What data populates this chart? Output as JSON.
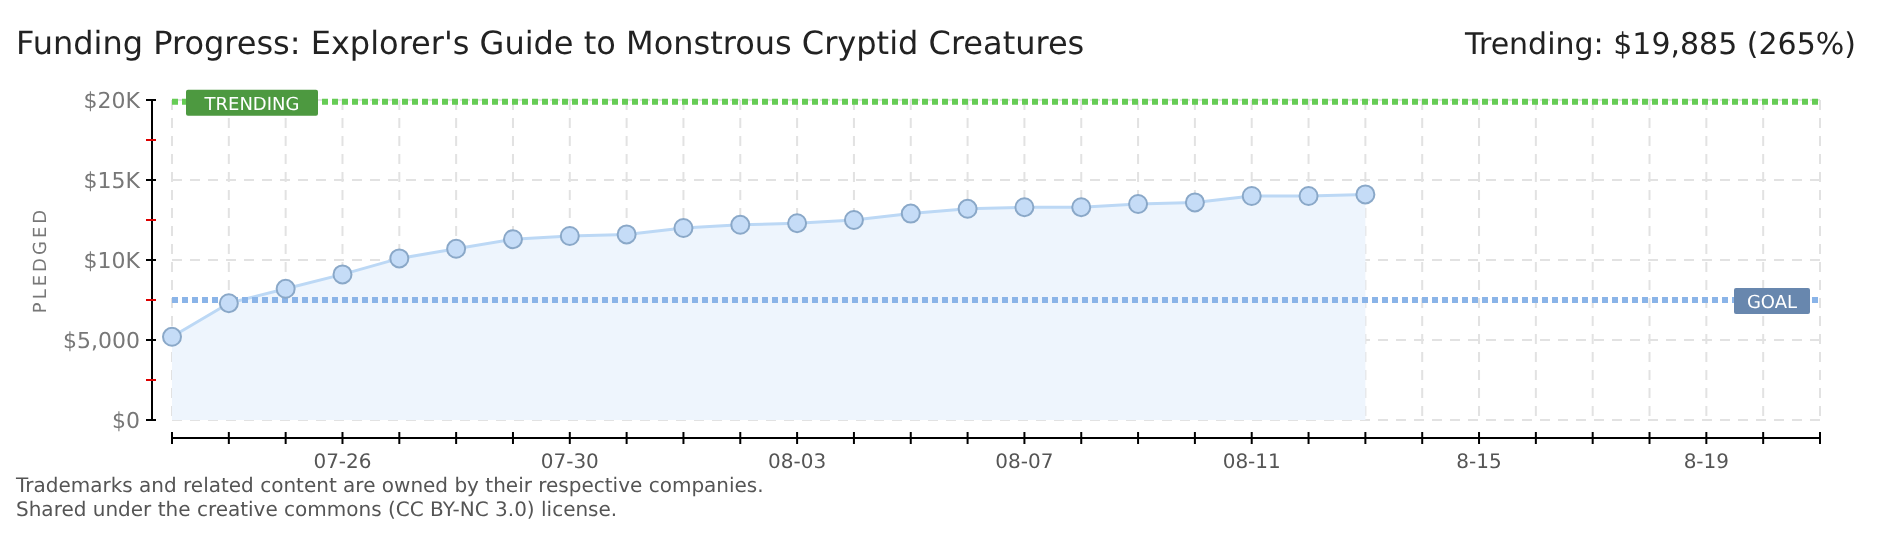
{
  "chart_data": {
    "type": "area",
    "title": "Funding Progress: Explorer's Guide to Monstrous Cryptid Creatures",
    "ylabel": "PLEDGED",
    "annotations": [
      "Trending: $19,885 (265%)",
      "Trademarks and related content are owned by their respective companies.",
      "Shared under the creative commons (CC BY-NC 3.0) license."
    ],
    "x": [
      "--07-23",
      "--07-24",
      "--07-25",
      "--07-26",
      "--07-27",
      "--07-28",
      "--07-29",
      "--07-30",
      "--07-31",
      "--08-01",
      "--08-02",
      "--08-03",
      "--08-04",
      "--08-05",
      "--08-06",
      "--08-07",
      "--08-08",
      "--08-09",
      "--08-10",
      "--08-11",
      "--08-12",
      "--08-13"
    ],
    "series": [
      {
        "color": "#bcd8f5",
        "values": [
          5200,
          7300,
          8200,
          9100,
          10100,
          10700,
          11300,
          11500,
          11600,
          12000,
          12200,
          12300,
          12500,
          12900,
          13200,
          13300,
          13300,
          13500,
          13600,
          14000,
          14000,
          14100
        ]
      }
    ],
    "xlim": [
      "--07-23",
      "--08-21"
    ],
    "xticks": [
      {
        "value": "--07-23",
        "label": null
      },
      {
        "value": "--07-24",
        "label": null
      },
      {
        "value": "--07-25",
        "label": null
      },
      {
        "value": "--07-26",
        "label": "07-26"
      },
      {
        "value": "--07-27",
        "label": null
      },
      {
        "value": "--07-28",
        "label": null
      },
      {
        "value": "--07-29",
        "label": null
      },
      {
        "value": "--07-30",
        "label": "07-30"
      },
      {
        "value": "--07-31",
        "label": null
      },
      {
        "value": "--08-01",
        "label": null
      },
      {
        "value": "--08-02",
        "label": null
      },
      {
        "value": "--08-03",
        "label": "08-03"
      },
      {
        "value": "--08-04",
        "label": null
      },
      {
        "value": "--08-05",
        "label": null
      },
      {
        "value": "--08-06",
        "label": null
      },
      {
        "value": "--08-07",
        "label": "08-07"
      },
      {
        "value": "--08-08",
        "label": null
      },
      {
        "value": "--08-09",
        "label": null
      },
      {
        "value": "--08-10",
        "label": null
      },
      {
        "value": "--08-11",
        "label": "08-11"
      },
      {
        "value": "--08-12",
        "label": null
      },
      {
        "value": "--08-13",
        "label": null
      },
      {
        "value": "--08-14",
        "label": null
      },
      {
        "value": "--08-15",
        "label": "8-15"
      },
      {
        "value": "--08-16",
        "label": null
      },
      {
        "value": "--08-17",
        "label": null
      },
      {
        "value": "--08-18",
        "label": null
      },
      {
        "value": "--08-19",
        "label": "8-19"
      },
      {
        "value": "--08-20",
        "label": null
      },
      {
        "value": "--08-21",
        "label": null
      }
    ],
    "ylim": [
      0,
      20000
    ],
    "yticks": [
      {
        "value": 0,
        "label": "$0"
      },
      {
        "value": 2500,
        "label": null
      },
      {
        "value": 5000,
        "label": "$5,000"
      },
      {
        "value": 7500,
        "label": null
      },
      {
        "value": 10000,
        "label": "$10K"
      },
      {
        "value": 12500,
        "label": null
      },
      {
        "value": 15000,
        "label": "$15K"
      },
      {
        "value": 17500,
        "label": null
      },
      {
        "value": 20000,
        "label": "$20K"
      }
    ],
    "ref_lines": [
      {
        "axis": "y",
        "value": 19885,
        "label": "TRENDING",
        "color": "#66cc55",
        "line_style": "dotted"
      },
      {
        "axis": "y",
        "value": 7500,
        "label": "GOAL",
        "color": "#8ab4e8",
        "line_style": "dotted"
      }
    ],
    "grid": true,
    "marker": "circle",
    "line_style": "solid"
  }
}
